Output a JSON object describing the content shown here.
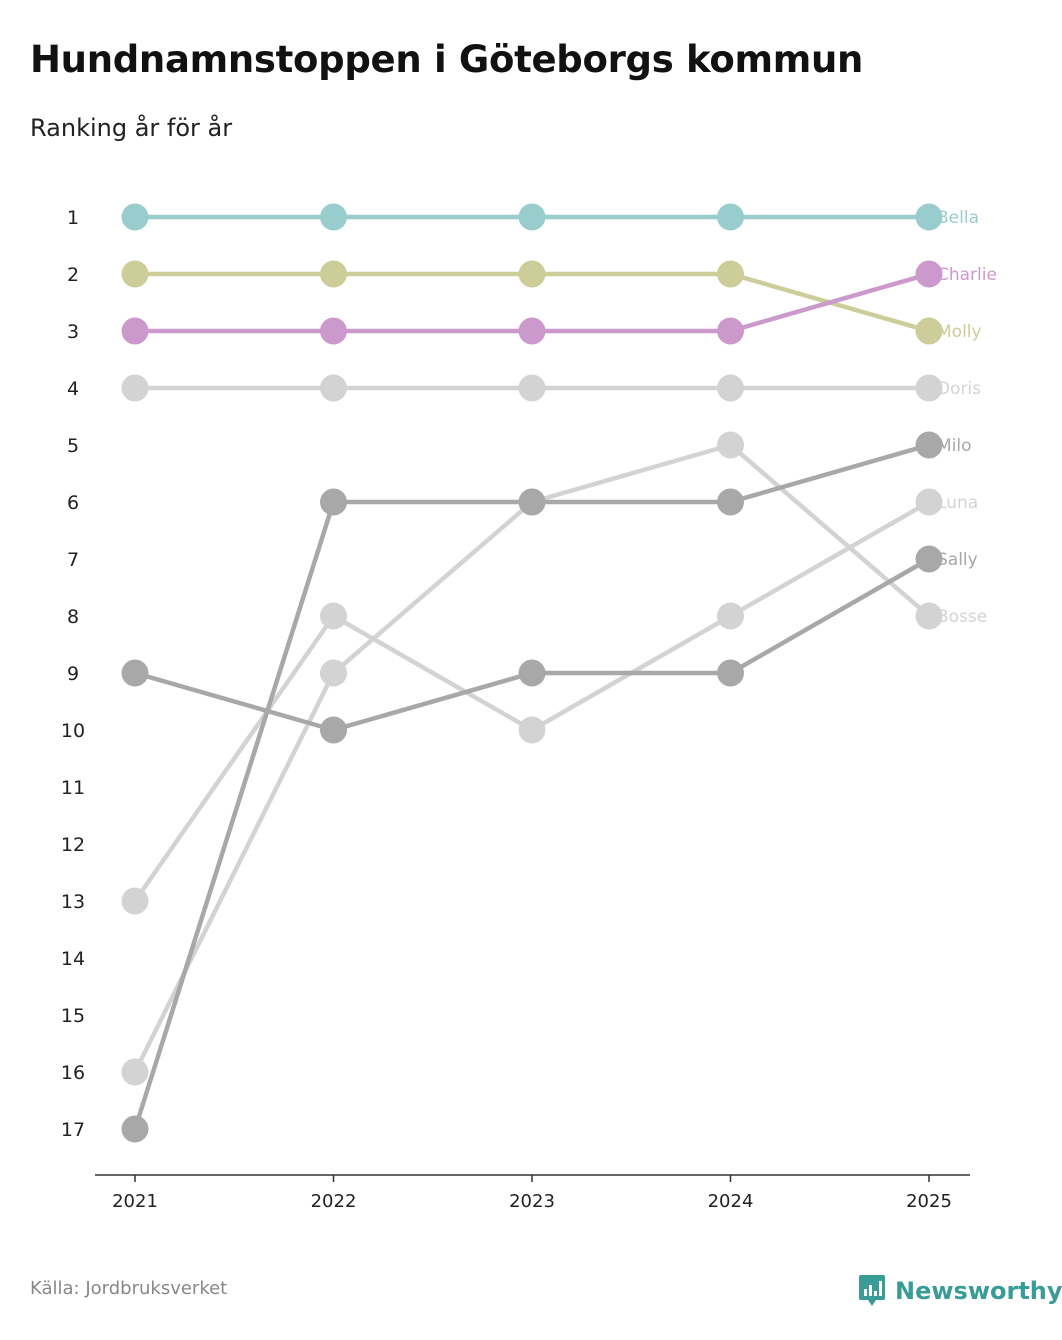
{
  "title": "Hundnamnstoppen i Göteborgs kommun",
  "subtitle": "Ranking år för år",
  "source": "Källa: Jordbruksverket",
  "brand": "Newsworthy",
  "chart_data": {
    "type": "line",
    "title": "Hundnamnstoppen i Göteborgs kommun",
    "subtitle": "Ranking år för år",
    "xlabel": "",
    "ylabel": "",
    "x": [
      "2021",
      "2022",
      "2023",
      "2024",
      "2025"
    ],
    "y_ticks": [
      1,
      2,
      3,
      4,
      5,
      6,
      7,
      8,
      9,
      10,
      11,
      12,
      13,
      14,
      15,
      16,
      17
    ],
    "ylim": [
      1,
      17
    ],
    "y_inverted": true,
    "series": [
      {
        "name": "Bosse",
        "values": [
          16,
          9,
          6,
          5,
          8
        ],
        "color": "#d3d3d3"
      },
      {
        "name": "Luna",
        "values": [
          13,
          8,
          10,
          8,
          6
        ],
        "color": "#d3d3d3"
      },
      {
        "name": "Doris",
        "values": [
          4,
          4,
          4,
          4,
          4
        ],
        "color": "#d3d3d3"
      },
      {
        "name": "Sally",
        "values": [
          9,
          10,
          9,
          9,
          7
        ],
        "color": "#a8a8a8"
      },
      {
        "name": "Milo",
        "values": [
          17,
          6,
          6,
          6,
          5
        ],
        "color": "#a8a8a8"
      },
      {
        "name": "Molly",
        "values": [
          2,
          2,
          2,
          2,
          3
        ],
        "color": "#cdcd9a"
      },
      {
        "name": "Charlie",
        "values": [
          3,
          3,
          3,
          3,
          2
        ],
        "color": "#cc99cc"
      },
      {
        "name": "Bella",
        "values": [
          1,
          1,
          1,
          1,
          1
        ],
        "color": "#99cccc"
      }
    ]
  }
}
